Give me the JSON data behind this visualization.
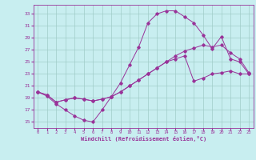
{
  "xlabel": "Windchill (Refroidissement éolien,°C)",
  "background_color": "#c8eef0",
  "grid_color": "#a0ccc8",
  "line_color": "#993399",
  "xlim": [
    -0.5,
    23.5
  ],
  "ylim": [
    14.0,
    34.5
  ],
  "yticks": [
    15,
    17,
    19,
    21,
    23,
    25,
    27,
    29,
    31,
    33
  ],
  "xticks": [
    0,
    1,
    2,
    3,
    4,
    5,
    6,
    7,
    8,
    9,
    10,
    11,
    12,
    13,
    14,
    15,
    16,
    17,
    18,
    19,
    20,
    21,
    22,
    23
  ],
  "series": [
    {
      "x": [
        0,
        1,
        2,
        3,
        4,
        5,
        6,
        7,
        8,
        9,
        10,
        11,
        12,
        13,
        14,
        15,
        16,
        17,
        18,
        19,
        20,
        21,
        22,
        23
      ],
      "y": [
        20.0,
        19.3,
        18.0,
        17.0,
        16.0,
        15.3,
        15.0,
        17.0,
        19.2,
        21.5,
        24.5,
        27.5,
        31.5,
        33.0,
        33.5,
        33.5,
        32.5,
        31.5,
        29.5,
        27.2,
        29.2,
        25.5,
        25.0,
        23.0
      ]
    },
    {
      "x": [
        0,
        1,
        2,
        3,
        4,
        5,
        6,
        7,
        8,
        9,
        10,
        11,
        12,
        13,
        14,
        15,
        16,
        17,
        18,
        19,
        20,
        21,
        22,
        23
      ],
      "y": [
        20.0,
        19.5,
        18.3,
        18.7,
        19.0,
        18.8,
        18.5,
        18.8,
        19.2,
        20.0,
        21.0,
        22.0,
        23.0,
        24.0,
        25.0,
        26.0,
        26.8,
        27.3,
        27.8,
        27.5,
        27.8,
        26.5,
        25.5,
        23.2
      ]
    },
    {
      "x": [
        0,
        1,
        2,
        3,
        4,
        5,
        6,
        7,
        8,
        9,
        10,
        11,
        12,
        13,
        14,
        15,
        16,
        17,
        18,
        19,
        20,
        21,
        22,
        23
      ],
      "y": [
        20.0,
        19.5,
        18.3,
        18.7,
        19.0,
        18.8,
        18.5,
        18.8,
        19.2,
        20.0,
        21.0,
        22.0,
        23.0,
        24.0,
        25.0,
        25.5,
        26.0,
        21.8,
        22.3,
        23.0,
        23.2,
        23.5,
        23.0,
        23.0
      ]
    }
  ]
}
